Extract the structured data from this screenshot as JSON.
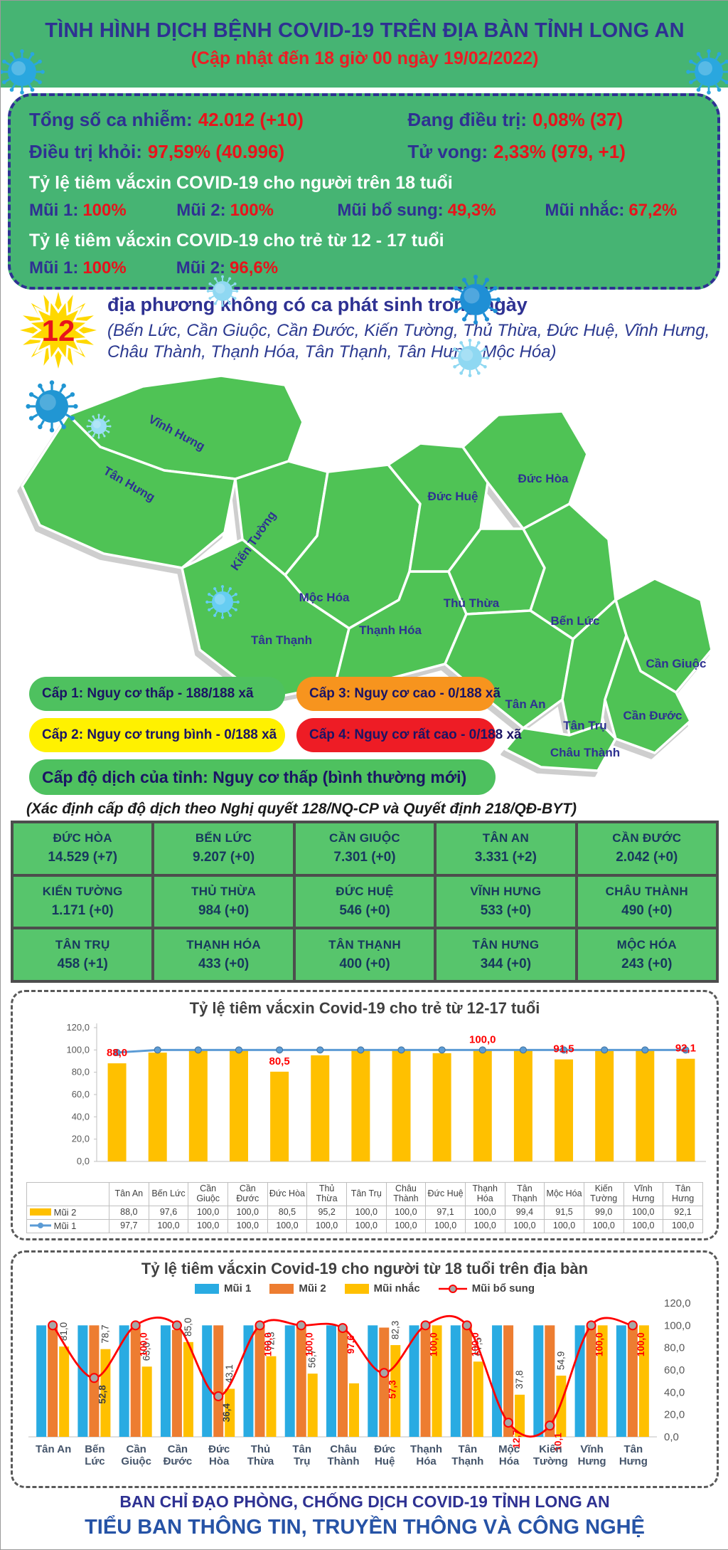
{
  "header": {
    "title": "TÌNH HÌNH DỊCH BỆNH COVID-19 TRÊN ĐỊA BÀN TỈNH LONG AN",
    "subtitle": "(Cập nhật đến 18 giờ 00 ngày 19/02/2022)"
  },
  "stats": {
    "items": [
      {
        "label": "Tổng số ca nhiễm:",
        "value": "42.012 (+10)"
      },
      {
        "label": "Đang điều trị:",
        "value": "0,08% (37)"
      },
      {
        "label": "Điều trị khỏi:",
        "value": "97,59% (40.996)"
      },
      {
        "label": "Tử vong:",
        "value": "2,33% (979, +1)"
      }
    ],
    "adult_title": "Tỷ lệ tiêm vắcxin COVID-19 cho người trên 18 tuổi",
    "adult_doses": [
      {
        "label": "Mũi 1:",
        "value": "100%"
      },
      {
        "label": "Mũi 2:",
        "value": "100%"
      },
      {
        "label": "Mũi bổ sung:",
        "value": "49,3%"
      },
      {
        "label": "Mũi nhắc:",
        "value": "67,2%"
      }
    ],
    "child_title": "Tỷ lệ tiêm vắcxin COVID-19 cho trẻ từ 12 - 17 tuổi",
    "child_doses": [
      {
        "label": "Mũi 1:",
        "value": "100%"
      },
      {
        "label": "Mũi 2:",
        "value": "96,6%"
      }
    ]
  },
  "no_new_cases": {
    "count": "12",
    "heading": "địa phương không có ca phát sinh trong ngày",
    "list": "(Bến Lức, Cần Giuộc, Cần Đước, Kiến Tường, Thủ Thừa, Đức Huệ, Vĩnh Hưng, Châu Thành, Thạnh Hóa, Tân Thạnh, Tân Hưng, Mộc Hóa)"
  },
  "map": {
    "district_labels": [
      "Vĩnh Hưng",
      "Tân Hưng",
      "Kiến Tường",
      "Mộc Hóa",
      "Tân Thạnh",
      "Thạnh Hóa",
      "Đức Huệ",
      "Đức Hòa",
      "Thủ Thừa",
      "Bến Lức",
      "Cần Giuộc",
      "Tân An",
      "Tân Trụ",
      "Cần Đước",
      "Châu Thành"
    ],
    "fill_color": "#4fc355",
    "label_color": "#2e3192"
  },
  "risk_legend": {
    "items": [
      {
        "label": "Cấp 1: Nguy cơ thấp - 188/188 xã",
        "color": "#4ec15f"
      },
      {
        "label": "Cấp 3: Nguy cơ cao - 0/188 xã",
        "color": "#f7941e"
      },
      {
        "label": "Cấp 2: Nguy cơ trung bình - 0/188 xã",
        "color": "#fff100"
      },
      {
        "label": "Cấp 4: Nguy cơ rất cao - 0/188 xã",
        "color": "#ee1c25"
      }
    ],
    "province_level": "Cấp độ dịch của tỉnh: Nguy cơ thấp (bình thường mới)",
    "province_level_color": "#4ec15f",
    "note": "(Xác định cấp độ dịch theo Nghị quyết 128/NQ-CP và Quyết định 218/QĐ-BYT)"
  },
  "cases_table": {
    "rows": [
      {
        "name": "ĐỨC HÒA",
        "value": "14.529 (+7)"
      },
      {
        "name": "BẾN LỨC",
        "value": "9.207 (+0)"
      },
      {
        "name": "CẦN GIUỘC",
        "value": "7.301 (+0)"
      },
      {
        "name": "TÂN AN",
        "value": "3.331 (+2)"
      },
      {
        "name": "CẦN ĐƯỚC",
        "value": "2.042 (+0)"
      },
      {
        "name": "KIẾN TƯỜNG",
        "value": "1.171 (+0)"
      },
      {
        "name": "THỦ THỪA",
        "value": "984 (+0)"
      },
      {
        "name": "ĐỨC HUỆ",
        "value": "546 (+0)"
      },
      {
        "name": "VĨNH HƯNG",
        "value": "533 (+0)"
      },
      {
        "name": "CHÂU THÀNH",
        "value": "490 (+0)"
      },
      {
        "name": "TÂN TRỤ",
        "value": "458 (+1)"
      },
      {
        "name": "THẠNH HÓA",
        "value": "433 (+0)"
      },
      {
        "name": "TÂN THẠNH",
        "value": "400 (+0)"
      },
      {
        "name": "TÂN HƯNG",
        "value": "344 (+0)"
      },
      {
        "name": "MỘC HÓA",
        "value": "243 (+0)"
      }
    ]
  },
  "chart_data": [
    {
      "type": "bar",
      "title": "Tỷ lệ tiêm vắcxin Covid-19 cho trẻ từ 12-17 tuổi",
      "categories": [
        "Tân An",
        "Bến Lức",
        "Cần Giuộc",
        "Cần Đước",
        "Đức Hòa",
        "Thủ Thừa",
        "Tân Trụ",
        "Châu Thành",
        "Đức Huệ",
        "Thạnh Hóa",
        "Tân Thạnh",
        "Mộc Hóa",
        "Kiến Tường",
        "Vĩnh Hưng",
        "Tân Hưng"
      ],
      "ylim": [
        0,
        120
      ],
      "yticks": [
        "0,0",
        "20,0",
        "40,0",
        "60,0",
        "80,0",
        "100,0",
        "120,0"
      ],
      "series": [
        {
          "name": "Mũi 2",
          "kind": "bar",
          "color": "#FFC000",
          "values": [
            88.0,
            97.6,
            100.0,
            100.0,
            80.5,
            95.2,
            100.0,
            100.0,
            97.1,
            100.0,
            99.4,
            91.5,
            99.0,
            100.0,
            92.1
          ],
          "display": [
            "88,0",
            "97,6",
            "100,0",
            "100,0",
            "80,5",
            "95,2",
            "100,0",
            "100,0",
            "97,1",
            "100,0",
            "99,4",
            "91,5",
            "99,0",
            "100,0",
            "92,1"
          ]
        },
        {
          "name": "Mũi 1",
          "kind": "line",
          "color": "#5B9BD5",
          "values": [
            97.7,
            100.0,
            100.0,
            100.0,
            100.0,
            100.0,
            100.0,
            100.0,
            100.0,
            100.0,
            100.0,
            100.0,
            100.0,
            100.0,
            100.0
          ],
          "display": [
            "97,7",
            "100,0",
            "100,0",
            "100,0",
            "100,0",
            "100,0",
            "100,0",
            "100,0",
            "100,0",
            "100,0",
            "100,0",
            "100,0",
            "100,0",
            "100,0",
            "100,0"
          ]
        }
      ],
      "point_labels": [
        "88,0",
        "",
        "",
        "",
        "80,5",
        "",
        "",
        "",
        "",
        "100,0",
        "",
        "91,5",
        "",
        "",
        "92,1"
      ],
      "point_label_color": "#FF0000"
    },
    {
      "type": "bar",
      "title": "Tỷ lệ tiêm vắcxin Covid-19 cho người từ 18 tuổi trên địa bàn",
      "categories": [
        "Tân An",
        "Bến Lức",
        "Cần Giuộc",
        "Cần Đước",
        "Đức Hòa",
        "Thủ Thừa",
        "Tân Trụ",
        "Châu Thành",
        "Đức Huệ",
        "Thạnh Hóa",
        "Tân Thạnh",
        "Mộc Hóa",
        "Kiến Tường",
        "Vĩnh Hưng",
        "Tân Hưng"
      ],
      "ylim": [
        0,
        120
      ],
      "yticks": [
        "0,0",
        "20,0",
        "40,0",
        "60,0",
        "80,0",
        "100,0",
        "120,0"
      ],
      "series": [
        {
          "name": "Mũi 1",
          "kind": "bar",
          "color": "#29ABE2",
          "values": [
            100,
            100,
            100,
            100,
            100,
            100,
            100,
            100,
            100,
            100,
            100,
            100,
            100,
            100,
            100
          ],
          "labels": [
            "",
            "",
            "",
            "",
            "",
            "",
            "",
            "",
            "",
            "",
            "",
            "",
            "",
            "",
            ""
          ]
        },
        {
          "name": "Mũi 2",
          "kind": "bar",
          "color": "#ED7D31",
          "values": [
            100,
            100,
            100,
            96,
            100,
            100,
            100,
            97,
            98,
            100,
            100,
            100,
            100,
            100,
            100
          ],
          "labels": [
            "",
            "",
            "",
            "",
            "",
            "",
            "",
            "",
            "",
            "",
            "",
            "",
            "",
            "",
            ""
          ]
        },
        {
          "name": "Mũi nhắc",
          "kind": "bar",
          "color": "#FFC000",
          "values": [
            81.0,
            78.7,
            63.0,
            85.0,
            43.1,
            72.3,
            56.7,
            48.0,
            82.3,
            100.0,
            67.5,
            37.8,
            54.9,
            100.0,
            100.0
          ],
          "labels": [
            "81,0",
            "78,7",
            "63,0",
            "85,0",
            "43,1",
            "72,3",
            "56,7",
            "",
            "82,3",
            "",
            "67,5",
            "37,8",
            "54,9",
            "",
            ""
          ],
          "label_color": "#404040"
        },
        {
          "name": "Mũi bổ sung",
          "kind": "line",
          "color": "#FF0000",
          "marker_fill": "#A6A6A6",
          "values": [
            100.0,
            52.8,
            100.0,
            100.0,
            36.4,
            100.0,
            100.0,
            97.6,
            57.3,
            100.0,
            100.0,
            12.7,
            10.1,
            100.0,
            100.0
          ],
          "labels": [
            "",
            "52,8",
            "100,0",
            "",
            "36,4",
            "100,0",
            "100,0",
            "97,6",
            "57,3",
            "100,0",
            "100,0",
            "12,7",
            "10,1",
            "100,0",
            "100,0"
          ],
          "label_colors": [
            "",
            "#404040",
            "#FF0000",
            "",
            "#404040",
            "#FF0000",
            "#FF0000",
            "#FF0000",
            "#FF0000",
            "#FF0000",
            "#FF0000",
            "#FF0000",
            "#FF0000",
            "#FF0000",
            "#FF0000"
          ]
        }
      ]
    }
  ],
  "footer": {
    "line1": "BAN CHỈ ĐẠO PHÒNG, CHỐNG DỊCH COVID-19 TỈNH LONG AN",
    "line2": "TIỂU BAN THÔNG TIN, TRUYỀN THÔNG VÀ CÔNG NGHỆ"
  },
  "icons": {
    "virus": "virus-icon",
    "starburst": "starburst-icon"
  }
}
